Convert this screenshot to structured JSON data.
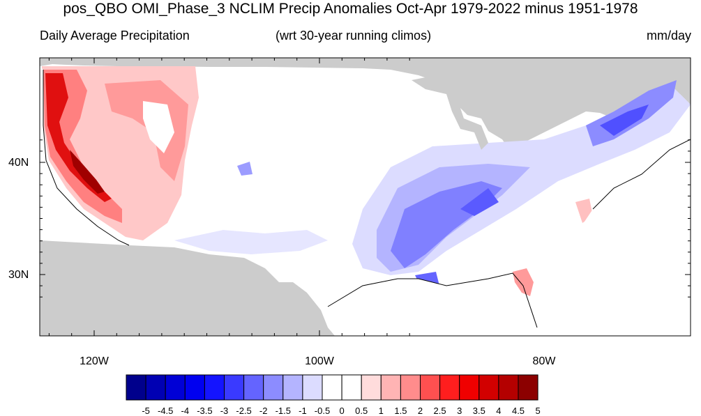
{
  "title": "pos_QBO OMI_Phase_3 NCLIM Precip Anomalies Oct-Apr 1979-2022 minus 1951-1978",
  "subtitle_left": "Daily Average Precipitation",
  "subtitle_center": "(wrt 30-year running climos)",
  "subtitle_right": "mm/day",
  "lat_labels": [
    "40N",
    "30N"
  ],
  "lon_labels": [
    "120W",
    "100W",
    "80W"
  ],
  "colorbar": {
    "labels": [
      "-5",
      "-4.5",
      "-4",
      "-3.5",
      "-3",
      "-2.5",
      "-2",
      "-1.5",
      "-1",
      "-0.5",
      "0",
      "0.5",
      "1",
      "1.5",
      "2",
      "2.5",
      "3",
      "3.5",
      "4",
      "4.5",
      "5"
    ],
    "colors": [
      "#00008c",
      "#0000b3",
      "#0000d6",
      "#0000f0",
      "#1414ff",
      "#3a3aff",
      "#6464ff",
      "#8c8cff",
      "#b4b4ff",
      "#dcdcff",
      "#ffffff",
      "#ffffff",
      "#ffdcdc",
      "#ffb4b4",
      "#ff8c8c",
      "#ff5050",
      "#ff1e1e",
      "#f00000",
      "#d20000",
      "#b40000",
      "#8c0000"
    ]
  },
  "colors": {
    "land_masked": "#cccccc",
    "ocean": "#ffffff"
  }
}
